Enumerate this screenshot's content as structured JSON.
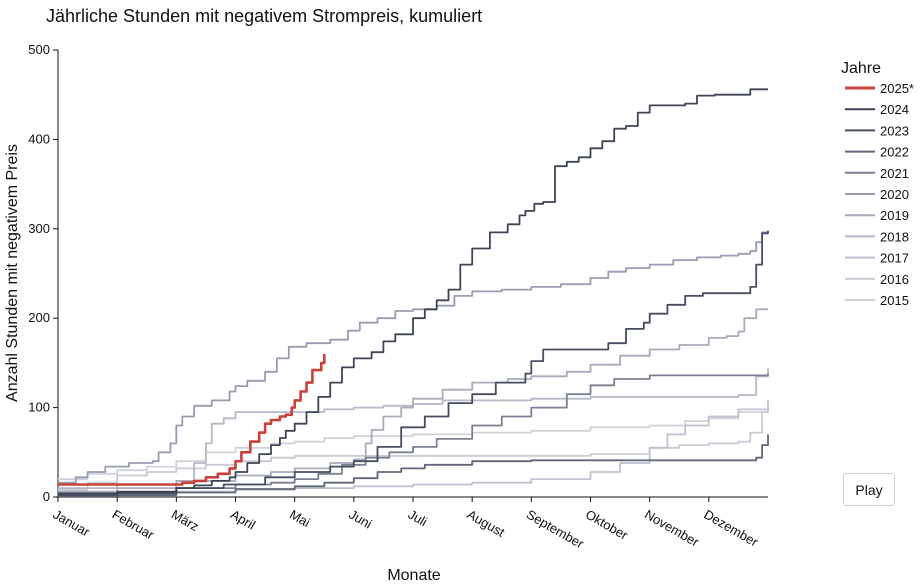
{
  "chart_data": {
    "type": "line",
    "title": "Jährliche Stunden mit negativem Strompreis, kumuliert",
    "xlabel": "Monate",
    "ylabel": "Anzahl Stunden mit negativem Preis",
    "x_categories": [
      "Januar",
      "Februar",
      "März",
      "April",
      "Mai",
      "Juni",
      "Juli",
      "August",
      "September",
      "Oktober",
      "November",
      "Dezember"
    ],
    "xlim": [
      0,
      12
    ],
    "ylim": [
      0,
      500
    ],
    "yticks": [
      0,
      100,
      200,
      300,
      400,
      500
    ],
    "grid": false,
    "legend_title": "Jahre",
    "legend_position": "right",
    "series": [
      {
        "name": "2025*",
        "color": "#c84239",
        "points": [
          [
            0,
            14
          ],
          [
            1.2,
            14
          ],
          [
            1.7,
            14
          ],
          [
            2.1,
            16
          ],
          [
            2.3,
            18
          ],
          [
            2.5,
            22
          ],
          [
            2.7,
            26
          ],
          [
            2.9,
            32
          ],
          [
            3.0,
            40
          ],
          [
            3.1,
            50
          ],
          [
            3.25,
            62
          ],
          [
            3.4,
            72
          ],
          [
            3.5,
            82
          ],
          [
            3.6,
            86
          ],
          [
            3.75,
            90
          ],
          [
            3.85,
            92
          ],
          [
            3.95,
            100
          ],
          [
            4.0,
            108
          ],
          [
            4.1,
            118
          ],
          [
            4.2,
            128
          ],
          [
            4.3,
            142
          ],
          [
            4.45,
            150
          ],
          [
            4.5,
            160
          ]
        ]
      },
      {
        "name": "2024",
        "color": "#3d4456",
        "points": [
          [
            0,
            4
          ],
          [
            1.0,
            6
          ],
          [
            2.0,
            10
          ],
          [
            2.3,
            13
          ],
          [
            2.6,
            18
          ],
          [
            2.9,
            22
          ],
          [
            3.0,
            28
          ],
          [
            3.2,
            38
          ],
          [
            3.4,
            48
          ],
          [
            3.6,
            58
          ],
          [
            3.75,
            66
          ],
          [
            3.85,
            74
          ],
          [
            4.0,
            82
          ],
          [
            4.2,
            95
          ],
          [
            4.4,
            112
          ],
          [
            4.6,
            128
          ],
          [
            4.8,
            145
          ],
          [
            5.0,
            155
          ],
          [
            5.3,
            162
          ],
          [
            5.5,
            174
          ],
          [
            5.7,
            182
          ],
          [
            6.0,
            200
          ],
          [
            6.2,
            210
          ],
          [
            6.4,
            220
          ],
          [
            6.6,
            232
          ],
          [
            6.8,
            260
          ],
          [
            7.0,
            278
          ],
          [
            7.3,
            296
          ],
          [
            7.6,
            305
          ],
          [
            7.8,
            315
          ],
          [
            7.9,
            320
          ],
          [
            8.05,
            328
          ],
          [
            8.2,
            330
          ],
          [
            8.4,
            370
          ],
          [
            8.6,
            375
          ],
          [
            8.8,
            380
          ],
          [
            9.0,
            390
          ],
          [
            9.2,
            398
          ],
          [
            9.4,
            412
          ],
          [
            9.6,
            415
          ],
          [
            9.8,
            430
          ],
          [
            10.0,
            438
          ],
          [
            10.3,
            438
          ],
          [
            10.6,
            440
          ],
          [
            10.8,
            449
          ],
          [
            11.1,
            450
          ],
          [
            11.4,
            450
          ],
          [
            11.7,
            456
          ],
          [
            12.0,
            456
          ]
        ]
      },
      {
        "name": "2023",
        "color": "#454c63",
        "points": [
          [
            0,
            2
          ],
          [
            1.0,
            4
          ],
          [
            2.0,
            10
          ],
          [
            2.8,
            14
          ],
          [
            3.5,
            22
          ],
          [
            4.0,
            28
          ],
          [
            4.6,
            34
          ],
          [
            5.0,
            40
          ],
          [
            5.4,
            56
          ],
          [
            5.8,
            78
          ],
          [
            6.2,
            90
          ],
          [
            6.6,
            105
          ],
          [
            7.0,
            115
          ],
          [
            7.4,
            128
          ],
          [
            7.9,
            138
          ],
          [
            8.0,
            152
          ],
          [
            8.2,
            165
          ],
          [
            8.8,
            165
          ],
          [
            9.3,
            172
          ],
          [
            9.6,
            188
          ],
          [
            9.9,
            195
          ],
          [
            10.0,
            205
          ],
          [
            10.3,
            215
          ],
          [
            10.6,
            225
          ],
          [
            10.9,
            228
          ],
          [
            11.2,
            228
          ],
          [
            11.5,
            228
          ],
          [
            11.7,
            235
          ],
          [
            11.8,
            260
          ],
          [
            11.9,
            295
          ],
          [
            12.0,
            298
          ]
        ]
      },
      {
        "name": "2022",
        "color": "#606779",
        "points": [
          [
            0,
            1
          ],
          [
            1.0,
            2
          ],
          [
            2.0,
            5
          ],
          [
            3.0,
            9
          ],
          [
            4.0,
            12
          ],
          [
            4.5,
            16
          ],
          [
            5.0,
            21
          ],
          [
            5.4,
            28
          ],
          [
            5.8,
            32
          ],
          [
            6.2,
            36
          ],
          [
            7.0,
            40
          ],
          [
            8.0,
            41
          ],
          [
            9.0,
            41
          ],
          [
            10.0,
            41
          ],
          [
            11.0,
            41
          ],
          [
            11.7,
            41
          ],
          [
            11.8,
            44
          ],
          [
            11.9,
            58
          ],
          [
            12.0,
            70
          ]
        ]
      },
      {
        "name": "2021",
        "color": "#7a8093",
        "points": [
          [
            0,
            3
          ],
          [
            1.0,
            5
          ],
          [
            2.0,
            10
          ],
          [
            3.0,
            14
          ],
          [
            3.6,
            16
          ],
          [
            4.0,
            20
          ],
          [
            4.4,
            26
          ],
          [
            4.8,
            36
          ],
          [
            5.2,
            44
          ],
          [
            5.6,
            50
          ],
          [
            6.0,
            56
          ],
          [
            6.4,
            65
          ],
          [
            7.0,
            80
          ],
          [
            7.5,
            90
          ],
          [
            8.0,
            100
          ],
          [
            8.6,
            115
          ],
          [
            9.0,
            125
          ],
          [
            9.4,
            132
          ],
          [
            10.0,
            136
          ],
          [
            10.6,
            136
          ],
          [
            11.0,
            136
          ],
          [
            11.5,
            136
          ],
          [
            12.0,
            138
          ]
        ]
      },
      {
        "name": "2020",
        "color": "#969cb3",
        "points": [
          [
            0,
            16
          ],
          [
            0.3,
            22
          ],
          [
            0.5,
            28
          ],
          [
            0.8,
            34
          ],
          [
            1.2,
            38
          ],
          [
            1.6,
            40
          ],
          [
            1.7,
            50
          ],
          [
            1.9,
            60
          ],
          [
            2.0,
            80
          ],
          [
            2.1,
            90
          ],
          [
            2.3,
            102
          ],
          [
            2.6,
            108
          ],
          [
            2.9,
            118
          ],
          [
            3.0,
            124
          ],
          [
            3.2,
            130
          ],
          [
            3.5,
            140
          ],
          [
            3.7,
            155
          ],
          [
            3.9,
            168
          ],
          [
            4.2,
            172
          ],
          [
            4.6,
            176
          ],
          [
            4.9,
            186
          ],
          [
            5.1,
            195
          ],
          [
            5.4,
            200
          ],
          [
            5.7,
            208
          ],
          [
            6.0,
            210
          ],
          [
            6.4,
            214
          ],
          [
            6.7,
            225
          ],
          [
            7.0,
            230
          ],
          [
            7.5,
            232
          ],
          [
            8.0,
            235
          ],
          [
            8.5,
            238
          ],
          [
            9.0,
            245
          ],
          [
            9.3,
            252
          ],
          [
            9.6,
            256
          ],
          [
            10.0,
            260
          ],
          [
            10.4,
            265
          ],
          [
            10.8,
            268
          ],
          [
            11.2,
            270
          ],
          [
            11.5,
            272
          ],
          [
            11.7,
            275
          ],
          [
            11.8,
            285
          ],
          [
            11.9,
            296
          ],
          [
            12.0,
            296
          ]
        ]
      },
      {
        "name": "2019",
        "color": "#a8abba",
        "points": [
          [
            0,
            6
          ],
          [
            1.0,
            10
          ],
          [
            2.0,
            18
          ],
          [
            3.0,
            24
          ],
          [
            3.6,
            28
          ],
          [
            4.0,
            32
          ],
          [
            4.6,
            38
          ],
          [
            5.0,
            42
          ],
          [
            5.2,
            60
          ],
          [
            5.3,
            75
          ],
          [
            5.5,
            90
          ],
          [
            5.8,
            100
          ],
          [
            6.0,
            110
          ],
          [
            6.5,
            120
          ],
          [
            7.0,
            128
          ],
          [
            7.6,
            132
          ],
          [
            8.0,
            135
          ],
          [
            8.6,
            140
          ],
          [
            9.0,
            148
          ],
          [
            9.5,
            158
          ],
          [
            10.0,
            165
          ],
          [
            10.5,
            170
          ],
          [
            11.0,
            178
          ],
          [
            11.3,
            180
          ],
          [
            11.5,
            185
          ],
          [
            11.6,
            200
          ],
          [
            11.8,
            210
          ],
          [
            12.0,
            210
          ]
        ]
      },
      {
        "name": "2018",
        "color": "#b5b8c5",
        "points": [
          [
            0,
            10
          ],
          [
            1.0,
            14
          ],
          [
            2.0,
            18
          ],
          [
            2.3,
            38
          ],
          [
            2.5,
            60
          ],
          [
            2.6,
            82
          ],
          [
            2.8,
            88
          ],
          [
            3.0,
            95
          ],
          [
            3.5,
            95
          ],
          [
            4.0,
            95
          ],
          [
            4.5,
            98
          ],
          [
            5.0,
            100
          ],
          [
            5.5,
            102
          ],
          [
            6.0,
            104
          ],
          [
            6.5,
            108
          ],
          [
            7.0,
            108
          ],
          [
            7.5,
            108
          ],
          [
            8.0,
            110
          ],
          [
            8.5,
            110
          ],
          [
            9.0,
            112
          ],
          [
            9.5,
            112
          ],
          [
            10.0,
            112
          ],
          [
            10.5,
            112
          ],
          [
            11.0,
            112
          ],
          [
            11.5,
            114
          ],
          [
            11.8,
            135
          ],
          [
            12.0,
            144
          ]
        ]
      },
      {
        "name": "2017",
        "color": "#bfc1d0",
        "points": [
          [
            0,
            3
          ],
          [
            1.0,
            3
          ],
          [
            2.0,
            6
          ],
          [
            3.0,
            8
          ],
          [
            4.0,
            10
          ],
          [
            5.0,
            12
          ],
          [
            6.0,
            14
          ],
          [
            7.0,
            16
          ],
          [
            8.0,
            20
          ],
          [
            9.0,
            28
          ],
          [
            9.5,
            38
          ],
          [
            10.0,
            55
          ],
          [
            10.3,
            70
          ],
          [
            10.6,
            80
          ],
          [
            11.0,
            90
          ],
          [
            11.5,
            98
          ],
          [
            12.0,
            108
          ]
        ]
      },
      {
        "name": "2016",
        "color": "#c8c9d4",
        "points": [
          [
            0,
            8
          ],
          [
            0.5,
            16
          ],
          [
            1.0,
            24
          ],
          [
            1.5,
            28
          ],
          [
            2.0,
            32
          ],
          [
            2.5,
            36
          ],
          [
            3.0,
            40
          ],
          [
            3.6,
            44
          ],
          [
            4.0,
            46
          ],
          [
            4.5,
            46
          ],
          [
            5.0,
            46
          ],
          [
            6.0,
            46
          ],
          [
            7.0,
            46
          ],
          [
            8.0,
            46
          ],
          [
            9.0,
            48
          ],
          [
            10.0,
            55
          ],
          [
            10.5,
            58
          ],
          [
            11.0,
            60
          ],
          [
            11.5,
            62
          ],
          [
            11.7,
            72
          ],
          [
            11.9,
            95
          ],
          [
            12.0,
            98
          ]
        ]
      },
      {
        "name": "2015",
        "color": "#d0d1da",
        "points": [
          [
            0,
            20
          ],
          [
            0.5,
            26
          ],
          [
            1.0,
            30
          ],
          [
            1.5,
            34
          ],
          [
            2.0,
            40
          ],
          [
            2.5,
            50
          ],
          [
            3.0,
            55
          ],
          [
            3.6,
            60
          ],
          [
            4.0,
            62
          ],
          [
            4.5,
            66
          ],
          [
            5.0,
            68
          ],
          [
            6.0,
            70
          ],
          [
            7.0,
            72
          ],
          [
            8.0,
            74
          ],
          [
            9.0,
            78
          ],
          [
            10.0,
            80
          ],
          [
            10.6,
            85
          ],
          [
            11.0,
            88
          ],
          [
            11.5,
            95
          ],
          [
            12.0,
            100
          ]
        ]
      }
    ]
  },
  "controls": {
    "play_label": "Play"
  }
}
